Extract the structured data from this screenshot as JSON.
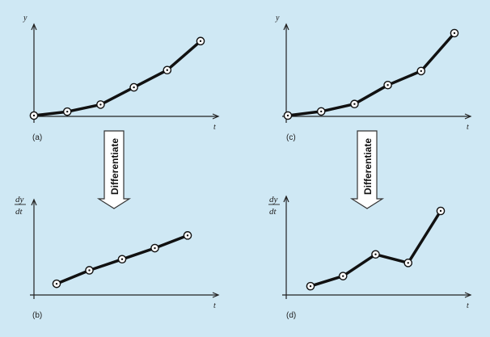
{
  "labels": {
    "y": "y",
    "t": "t",
    "dy": "dy",
    "dt": "dt",
    "differentiate": "Differentiate"
  },
  "panels": [
    {
      "id": "a",
      "label": "(a)",
      "points": [
        [
          0,
          0
        ],
        [
          1,
          0.05
        ],
        [
          2,
          0.14
        ],
        [
          3,
          0.36
        ],
        [
          4,
          0.58
        ],
        [
          5,
          0.95
        ]
      ]
    },
    {
      "id": "b",
      "label": "(b)",
      "points": [
        [
          0,
          0.07
        ],
        [
          1,
          0.24
        ],
        [
          2,
          0.38
        ],
        [
          3,
          0.52
        ],
        [
          4,
          0.68
        ]
      ]
    },
    {
      "id": "c",
      "label": "(c)",
      "points": [
        [
          0,
          0
        ],
        [
          1,
          0.05
        ],
        [
          2,
          0.14
        ],
        [
          3,
          0.37
        ],
        [
          4,
          0.54
        ],
        [
          5,
          1.0
        ]
      ]
    },
    {
      "id": "d",
      "label": "(d)",
      "points": [
        [
          0,
          0.03
        ],
        [
          1,
          0.16
        ],
        [
          2,
          0.44
        ],
        [
          3,
          0.33
        ],
        [
          4,
          1.0
        ]
      ]
    }
  ]
}
